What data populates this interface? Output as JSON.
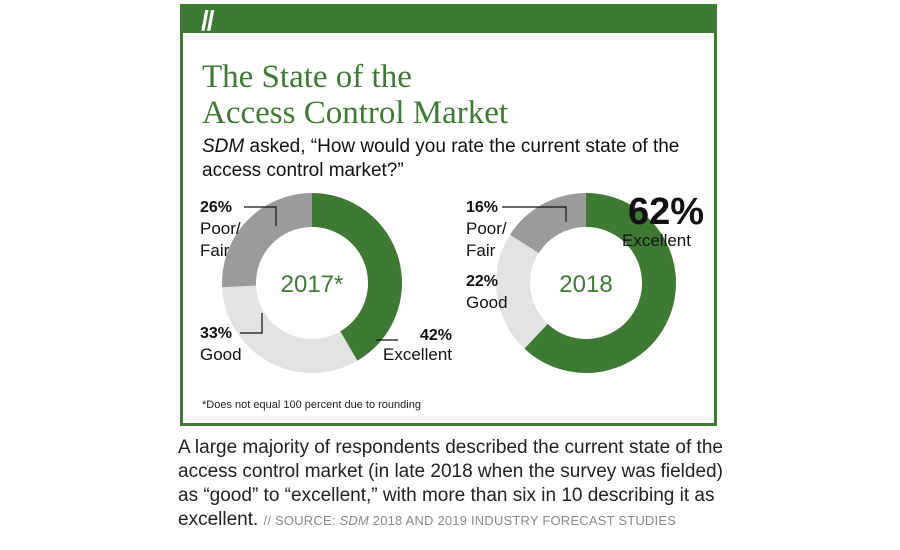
{
  "header": {
    "slashes": "//",
    "title_line1": "The State of the",
    "title_line2": "Access Control Market",
    "subtitle_italic": "SDM",
    "subtitle_rest": " asked, “How would you rate the current state of the access control market?”"
  },
  "chart_data": [
    {
      "type": "pie",
      "center_label": "2017*",
      "slices": [
        {
          "label_lines": [
            "Excellent"
          ],
          "value": 42,
          "value_text": "42%"
        },
        {
          "label_lines": [
            "Good"
          ],
          "value": 33,
          "value_text": "33%"
        },
        {
          "label_lines": [
            "Poor/",
            "Fair"
          ],
          "value": 26,
          "value_text": "26%"
        }
      ]
    },
    {
      "type": "pie",
      "center_label": "2018",
      "slices": [
        {
          "label_lines": [
            "Excellent"
          ],
          "value": 62,
          "value_text": "62%"
        },
        {
          "label_lines": [
            "Good"
          ],
          "value": 22,
          "value_text": "22%"
        },
        {
          "label_lines": [
            "Poor/",
            "Fair"
          ],
          "value": 16,
          "value_text": "16%"
        }
      ]
    }
  ],
  "colors": {
    "excellent": "#3f7a34",
    "good": "#e3e3e3",
    "poor_fair": "#9b9b9b",
    "accent": "#3f7a34"
  },
  "footnote": "*Does not equal 100 percent due to rounding",
  "caption": {
    "text": "A large majority of respondents described the current state of the access control market (in late 2018 when the survey was fielded) as “good” to “excellent,” with more than six in 10 describing it as excellent.",
    "source_prefix": "// SOURCE: ",
    "source_italic": "SDM",
    "source_rest": " 2018 AND 2019 INDUSTRY FORECAST STUDIES"
  }
}
